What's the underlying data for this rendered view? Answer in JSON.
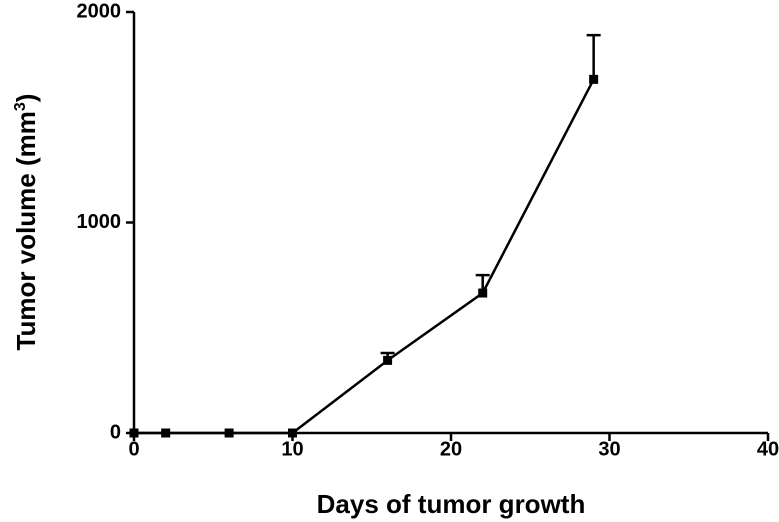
{
  "chart_data": {
    "type": "line",
    "title": "",
    "xlabel": "Days of tumor growth",
    "ylabel": {
      "main": "Tumor volume (mm",
      "superscript": "3",
      "close": ")"
    },
    "xlim": [
      0,
      40
    ],
    "ylim": [
      0,
      2000
    ],
    "xticks": [
      "0",
      "10",
      "20",
      "30",
      "40"
    ],
    "yticks": [
      "0",
      "1000",
      "2000"
    ],
    "grid": false,
    "legend": "none",
    "line_color": "#000000",
    "marker": "square",
    "series": [
      {
        "x": [
          0,
          2,
          6,
          10,
          16,
          22,
          29
        ],
        "y": [
          0,
          0,
          0,
          0,
          345,
          665,
          1680
        ],
        "error_upper": [
          0,
          0,
          0,
          0,
          35,
          85,
          210
        ]
      }
    ]
  }
}
